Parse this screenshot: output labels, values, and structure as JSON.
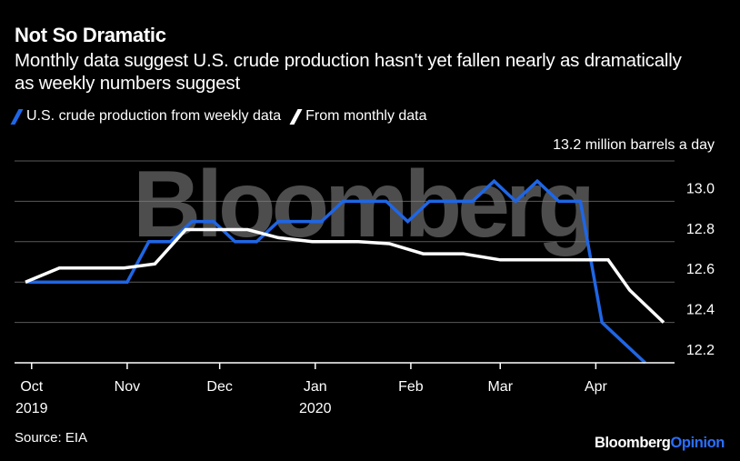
{
  "header": {
    "title": "Not So Dramatic",
    "subtitle": "Monthly data suggest U.S. crude production hasn't yet fallen nearly as dramatically as weekly numbers suggest"
  },
  "legend": [
    {
      "label": "U.S. crude production from weekly data",
      "color": "#1f66e5"
    },
    {
      "label": "From monthly data",
      "color": "#ffffff"
    }
  ],
  "footer": {
    "source": "Source: EIA",
    "brand_main": "Bloomberg",
    "brand_accent": "Opinion"
  },
  "watermark": "Bloomberg",
  "chart_data": {
    "type": "line",
    "unit_label": "13.2 million barrels a day",
    "ylim": [
      12.2,
      13.2
    ],
    "y_ticks": [
      12.2,
      12.4,
      12.6,
      12.8,
      13.0
    ],
    "y_tick_labels": [
      "12.2",
      "12.4",
      "12.6",
      "12.8",
      "13.0"
    ],
    "y_top_label": "13.2",
    "xlim": [
      "2019-09-29",
      "2020-04-23"
    ],
    "x_ticks": [
      {
        "date": "2019-10-01",
        "label": "Oct",
        "sublabel": "2019"
      },
      {
        "date": "2019-11-01",
        "label": "Nov",
        "sublabel": ""
      },
      {
        "date": "2019-12-01",
        "label": "Dec",
        "sublabel": ""
      },
      {
        "date": "2020-01-01",
        "label": "Jan",
        "sublabel": "2020"
      },
      {
        "date": "2020-02-01",
        "label": "Feb",
        "sublabel": ""
      },
      {
        "date": "2020-03-01",
        "label": "Mar",
        "sublabel": ""
      },
      {
        "date": "2020-04-01",
        "label": "Apr",
        "sublabel": ""
      }
    ],
    "grid": true,
    "legend_position": "top-left",
    "series": [
      {
        "name": "U.S. crude production from weekly data",
        "color": "#1f66e5",
        "points": [
          [
            "2019-09-29",
            12.6
          ],
          [
            "2019-10-04",
            12.6
          ],
          [
            "2019-10-11",
            12.6
          ],
          [
            "2019-10-18",
            12.6
          ],
          [
            "2019-10-25",
            12.6
          ],
          [
            "2019-11-01",
            12.6
          ],
          [
            "2019-11-08",
            12.8
          ],
          [
            "2019-11-15",
            12.8
          ],
          [
            "2019-11-22",
            12.9
          ],
          [
            "2019-11-29",
            12.9
          ],
          [
            "2019-12-06",
            12.8
          ],
          [
            "2019-12-13",
            12.8
          ],
          [
            "2019-12-20",
            12.9
          ],
          [
            "2019-12-27",
            12.9
          ],
          [
            "2020-01-03",
            12.9
          ],
          [
            "2020-01-10",
            13.0
          ],
          [
            "2020-01-17",
            13.0
          ],
          [
            "2020-01-24",
            13.0
          ],
          [
            "2020-01-31",
            12.9
          ],
          [
            "2020-02-07",
            13.0
          ],
          [
            "2020-02-14",
            13.0
          ],
          [
            "2020-02-21",
            13.0
          ],
          [
            "2020-02-28",
            13.1
          ],
          [
            "2020-03-06",
            13.0
          ],
          [
            "2020-03-13",
            13.1
          ],
          [
            "2020-03-20",
            13.0
          ],
          [
            "2020-03-27",
            13.0
          ],
          [
            "2020-04-03",
            12.4
          ],
          [
            "2020-04-10",
            12.3
          ],
          [
            "2020-04-17",
            12.2
          ]
        ]
      },
      {
        "name": "From monthly data",
        "color": "#ffffff",
        "points": [
          [
            "2019-09-29",
            12.6
          ],
          [
            "2019-10-10",
            12.67
          ],
          [
            "2019-10-31",
            12.67
          ],
          [
            "2019-11-10",
            12.69
          ],
          [
            "2019-11-20",
            12.86
          ],
          [
            "2019-12-10",
            12.86
          ],
          [
            "2019-12-20",
            12.82
          ],
          [
            "2019-12-31",
            12.8
          ],
          [
            "2020-01-15",
            12.8
          ],
          [
            "2020-01-25",
            12.79
          ],
          [
            "2020-02-05",
            12.74
          ],
          [
            "2020-02-18",
            12.74
          ],
          [
            "2020-03-01",
            12.71
          ],
          [
            "2020-03-12",
            12.71
          ],
          [
            "2020-04-05",
            12.71
          ],
          [
            "2020-04-12",
            12.56
          ],
          [
            "2020-04-23",
            12.4
          ]
        ]
      }
    ]
  }
}
